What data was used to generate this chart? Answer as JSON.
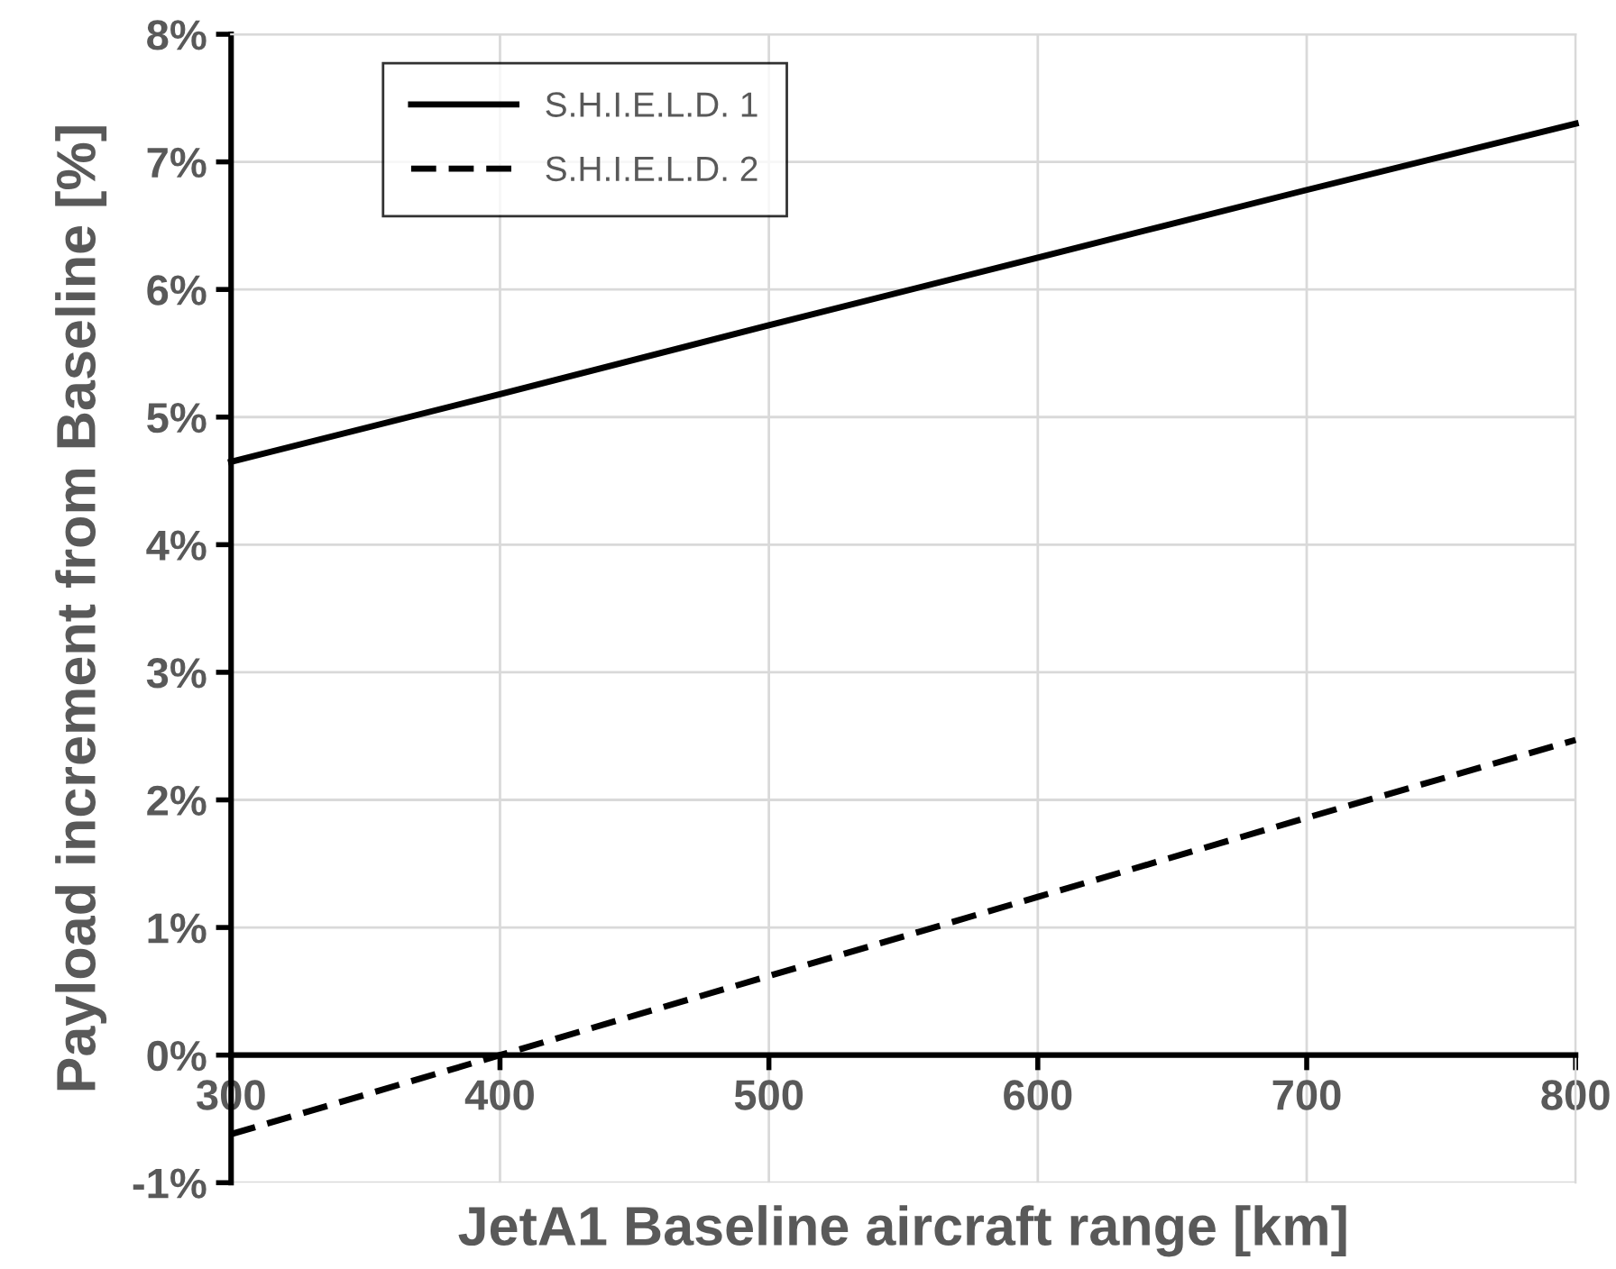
{
  "chart_data": {
    "type": "line",
    "xlabel": "JetA1 Baseline aircraft range [km]",
    "ylabel": "Payload increment from Baseline [%]",
    "x": [
      300,
      400,
      500,
      600,
      700,
      800
    ],
    "series": [
      {
        "name": "S.H.I.E.L.D. 1",
        "color": "#000000",
        "line_style": "solid",
        "values": [
          4.65,
          5.18,
          5.72,
          6.25,
          6.78,
          7.3
        ]
      },
      {
        "name": "S.H.I.E.L.D. 2",
        "color": "#000000",
        "line_style": "dashed",
        "values": [
          -0.62,
          0.0,
          0.62,
          1.24,
          1.86,
          2.47
        ]
      }
    ],
    "xlim": [
      300,
      800
    ],
    "xticks": [
      300,
      400,
      500,
      600,
      700,
      800
    ],
    "ylim": [
      -1,
      8
    ],
    "yticks": [
      {
        "value": -1,
        "label": "-1%"
      },
      {
        "value": 0,
        "label": "0%"
      },
      {
        "value": 1,
        "label": "1%"
      },
      {
        "value": 2,
        "label": "2%"
      },
      {
        "value": 3,
        "label": "3%"
      },
      {
        "value": 4,
        "label": "4%"
      },
      {
        "value": 5,
        "label": "5%"
      },
      {
        "value": 6,
        "label": "6%"
      },
      {
        "value": 7,
        "label": "7%"
      },
      {
        "value": 8,
        "label": "8%"
      }
    ],
    "grid": true,
    "legend": "top left",
    "marker": "none"
  }
}
